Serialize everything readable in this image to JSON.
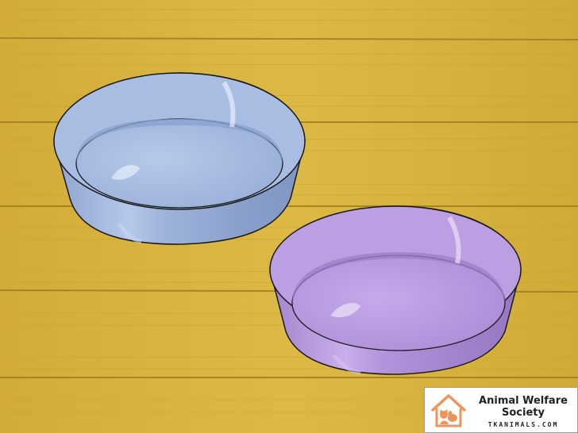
{
  "scene": {
    "description_name": "two pet food bowls on wooden floor",
    "colors": {
      "floor": "#d6b23c",
      "floor_dark": "#b8912a",
      "blue_bowl": "#9fb4dc",
      "purple_bowl": "#b596d9",
      "outline": "#1a1a1a"
    }
  },
  "watermark": {
    "line1": "Animal Welfare",
    "line2": "Society",
    "domain": "TKANIMALS.COM",
    "logo_icon": "house-with-pets-icon",
    "logo_color": "#f0935a"
  }
}
